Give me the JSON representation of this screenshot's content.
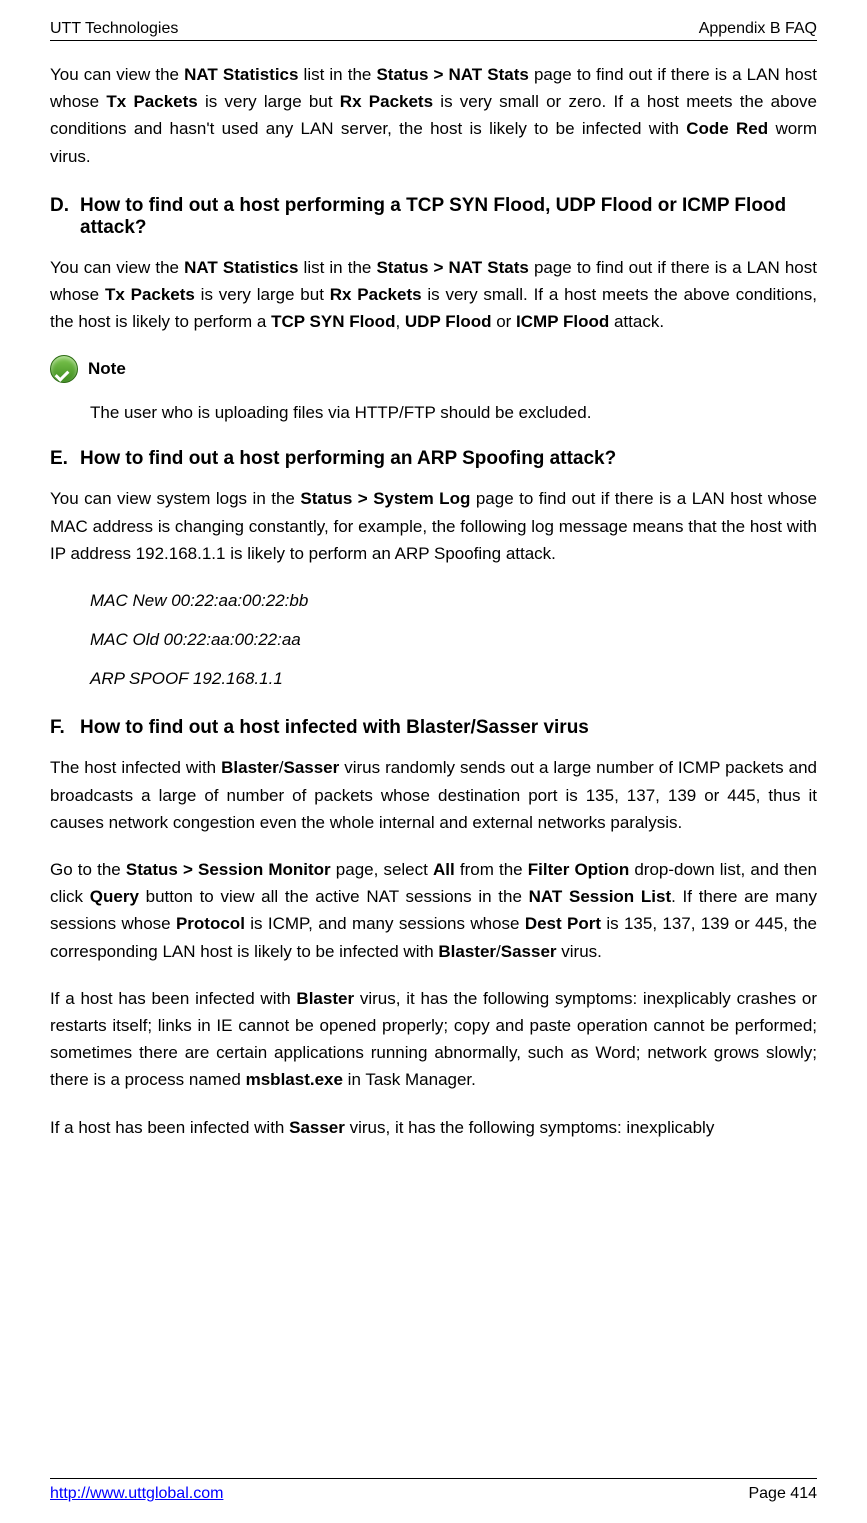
{
  "header": {
    "left": "UTT Technologies",
    "right": "Appendix B FAQ"
  },
  "content": {
    "para_intro": "You can view the <b>NAT Statistics</b> list in the <b>Status > NAT Stats</b> page to find out if there is a LAN host whose <b>Tx Packets</b> is very large but <b>Rx Packets</b> is very small or zero. If a host meets the above conditions and hasn't used any LAN server, the host is likely to be infected with <b>Code Red</b> worm virus.",
    "section_d": {
      "letter": "D.",
      "heading": "How to find out a host performing a TCP SYN Flood, UDP Flood or ICMP Flood attack?",
      "body": "You can view the <b>NAT Statistics</b> list in the <b>Status > NAT Stats</b> page to find out if there is a LAN host whose <b>Tx Packets</b> is very large but <b>Rx Packets</b> is very small. If a host meets the above conditions, the host is likely to perform a <b>TCP SYN Flood</b>, <b>UDP Flood</b> or <b>ICMP Flood</b> attack."
    },
    "note": {
      "label": "Note",
      "text": "The user who is uploading files via HTTP/FTP should be excluded."
    },
    "section_e": {
      "letter": "E.",
      "heading": "How to find out a host performing an ARP Spoofing attack?",
      "body": "You can view system logs in the <b>Status > System Log</b> page to find out if there is a LAN host whose MAC address is changing constantly, for example, the following log message means that the host with IP address 192.168.1.1 is likely to perform an ARP Spoofing attack.",
      "log1": "MAC New 00:22:aa:00:22:bb",
      "log2": "MAC Old 00:22:aa:00:22:aa",
      "log3": "ARP SPOOF 192.168.1.1"
    },
    "section_f": {
      "letter": "F.",
      "heading": "How to find out a host infected with Blaster/Sasser virus",
      "body1": "The host infected with <b>Blaster</b>/<b>Sasser</b> virus randomly sends out a large number of ICMP packets and broadcasts a large of number of packets whose destination port is 135, 137, 139 or 445, thus it causes network congestion even the whole internal and external networks paralysis.",
      "body2": "Go to the <b>Status > Session Monitor</b> page, select <b>All</b> from the <b>Filter Option</b> drop-down list, and then click <b>Query</b> button to view all the active NAT sessions in the <b>NAT Session List</b>. If there are many sessions whose <b>Protocol</b> is ICMP, and many sessions whose <b>Dest Port</b> is 135, 137, 139 or 445, the corresponding LAN host is likely to be infected with <b>Blaster</b>/<b>Sasser</b> virus.",
      "body3": "If a host has been infected with <b>Blaster</b> virus, it has the following symptoms: inexplicably crashes or restarts itself; links in IE cannot be opened properly; copy and paste operation cannot be performed; sometimes there are certain applications running abnormally, such as Word; network grows slowly; there is a process named <b>msblast.exe</b> in Task Manager.",
      "body4": "If a host has been infected with <b>Sasser</b> virus, it has the following symptoms: inexplicably"
    }
  },
  "footer": {
    "link": "http://www.uttglobal.com",
    "page": "Page 414"
  }
}
